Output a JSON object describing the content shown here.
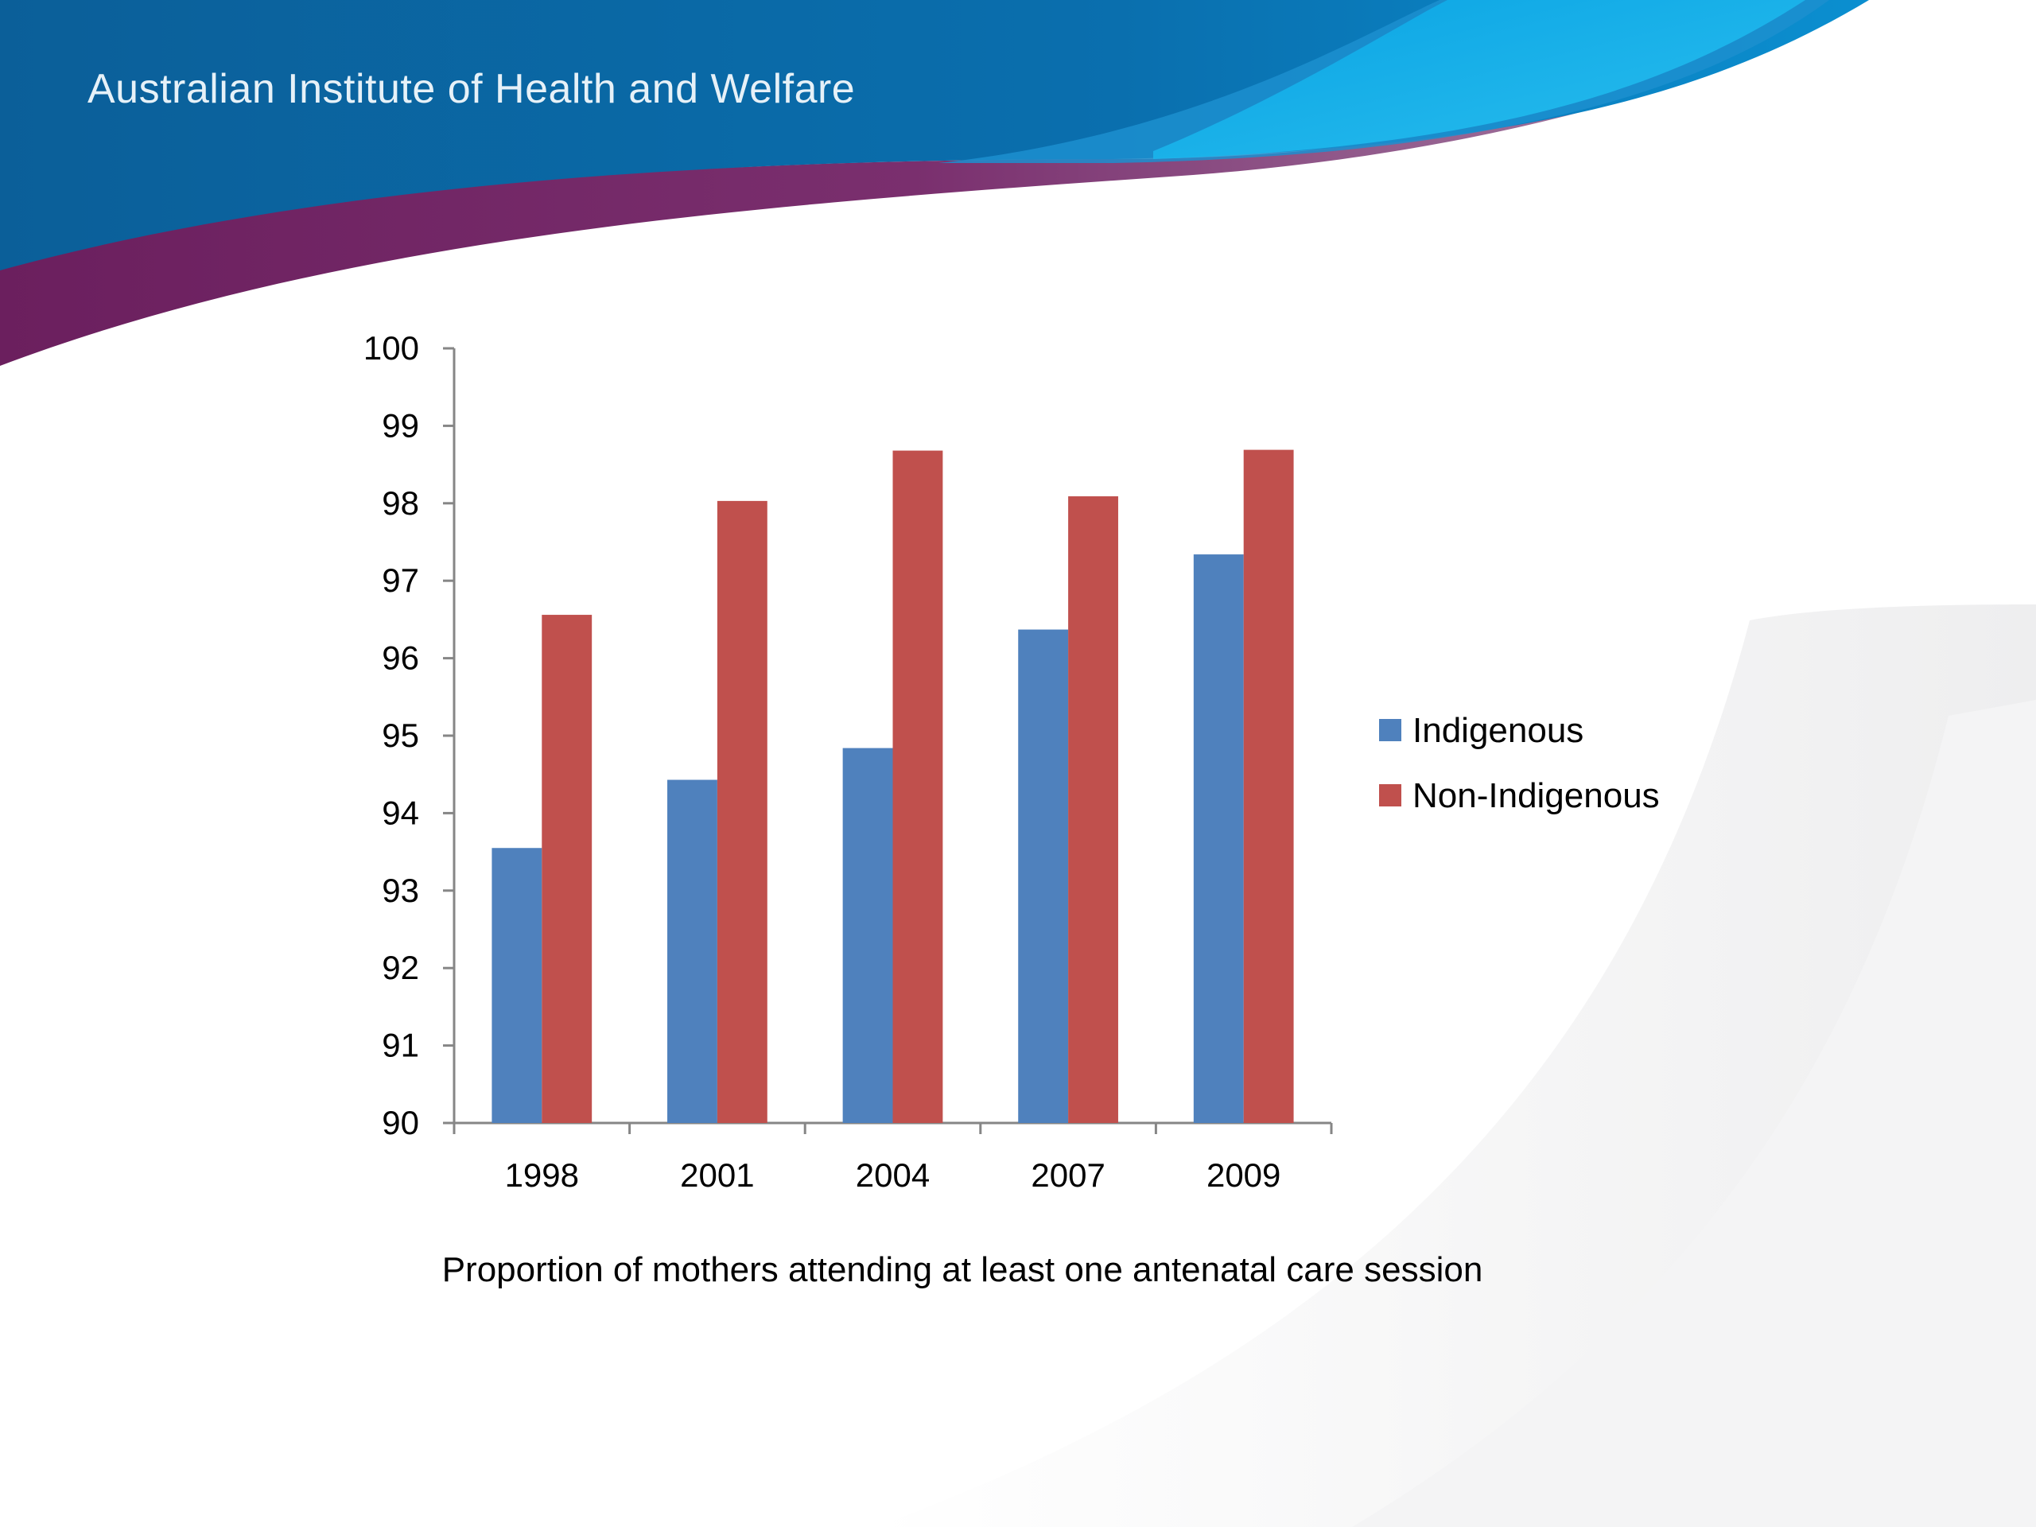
{
  "header": {
    "title": "Australian Institute of Health and Welfare"
  },
  "colors": {
    "header_blue": "#0b6aa6",
    "header_light_blue": "#1aa7de",
    "purple_band": "#6f2563",
    "indigenous": "#4f81bd",
    "non_indigenous": "#c0504d"
  },
  "chart_data": {
    "type": "bar",
    "categories": [
      "1998",
      "2001",
      "2004",
      "2007",
      "2009"
    ],
    "series": [
      {
        "name": "Indigenous",
        "values": [
          93.55,
          94.43,
          94.84,
          96.37,
          97.34
        ]
      },
      {
        "name": "Non-Indigenous",
        "values": [
          96.56,
          98.03,
          98.68,
          98.09,
          98.69
        ]
      }
    ],
    "ylim": [
      90,
      100
    ],
    "yticks": [
      90,
      91,
      92,
      93,
      94,
      95,
      96,
      97,
      98,
      99,
      100
    ],
    "xlabel": "Proportion of mothers attending at least one antenatal care session",
    "ylabel": "",
    "title": "",
    "grid": false,
    "legend": "right"
  }
}
